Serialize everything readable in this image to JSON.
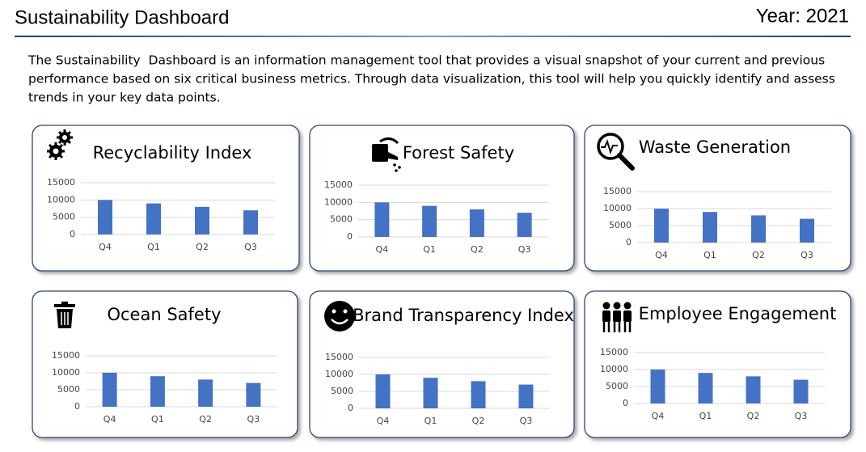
{
  "header": {
    "title": "Sustainability Dashboard",
    "year": "Year: 2021"
  },
  "description": [
    "The Sustainability  Dashboard is an information management tool that provides a visual snapshot of your current and previous",
    "performance based on six critical business metrics. Through data visualization, this tool will help you quickly identify and assess",
    "trends in your key data points."
  ],
  "chart_data": [
    {
      "type": "bar",
      "title": "Recyclability Index",
      "categories": [
        "Q4",
        "Q1",
        "Q2",
        "Q3"
      ],
      "values": [
        10000,
        9000,
        8000,
        7000
      ],
      "color": "#4472c4",
      "ylim": [
        0,
        15000
      ],
      "yticks": [
        0,
        5000,
        10000,
        15000
      ],
      "grid": true
    },
    {
      "type": "bar",
      "title": "Forest Safety",
      "categories": [
        "Q4",
        "Q1",
        "Q2",
        "Q3"
      ],
      "values": [
        10000,
        9000,
        8000,
        7000
      ],
      "color": "#4472c4",
      "ylim": [
        0,
        15000
      ],
      "yticks": [
        0,
        5000,
        10000,
        15000
      ],
      "grid": true
    },
    {
      "type": "bar",
      "title": "Waste Generation",
      "categories": [
        "Q4",
        "Q1",
        "Q2",
        "Q3"
      ],
      "values": [
        10000,
        9000,
        8000,
        7000
      ],
      "color": "#4472c4",
      "ylim": [
        0,
        15000
      ],
      "yticks": [
        0,
        5000,
        10000,
        15000
      ],
      "grid": true
    },
    {
      "type": "bar",
      "title": "Ocean Safety",
      "categories": [
        "Q4",
        "Q1",
        "Q2",
        "Q3"
      ],
      "values": [
        10000,
        9000,
        8000,
        7000
      ],
      "color": "#4472c4",
      "ylim": [
        0,
        15000
      ],
      "yticks": [
        0,
        5000,
        10000,
        15000
      ],
      "grid": true
    },
    {
      "type": "bar",
      "title": "Brand Transparency Index",
      "categories": [
        "Q4",
        "Q1",
        "Q2",
        "Q3"
      ],
      "values": [
        10000,
        9000,
        8000,
        7000
      ],
      "color": "#4472c4",
      "ylim": [
        0,
        15000
      ],
      "yticks": [
        0,
        5000,
        10000,
        15000
      ],
      "grid": true
    },
    {
      "type": "bar",
      "title": "Employee Engagement",
      "categories": [
        "Q4",
        "Q1",
        "Q2",
        "Q3"
      ],
      "values": [
        10000,
        9000,
        8000,
        7000
      ],
      "color": "#4472c4",
      "ylim": [
        0,
        15000
      ],
      "yticks": [
        0,
        5000,
        10000,
        15000
      ],
      "grid": true
    }
  ]
}
